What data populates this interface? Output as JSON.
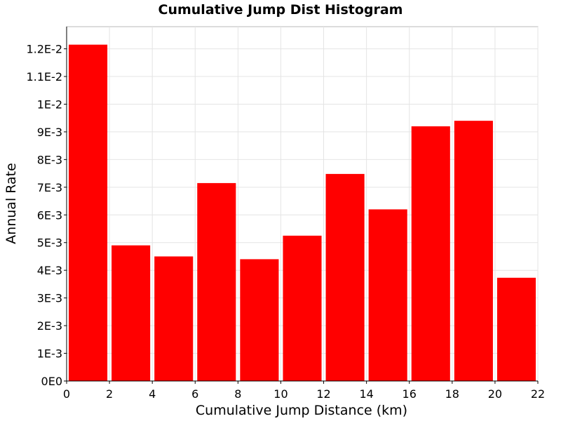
{
  "chart_data": {
    "type": "bar",
    "title": "Cumulative Jump Dist Histogram",
    "xlabel": "Cumulative Jump Distance (km)",
    "ylabel": "Annual Rate",
    "xlim": [
      0,
      22
    ],
    "ylim": [
      0,
      0.0128
    ],
    "x_ticks": [
      0,
      2,
      4,
      6,
      8,
      10,
      12,
      14,
      16,
      18,
      20,
      22
    ],
    "x_tick_labels": [
      "0",
      "2",
      "4",
      "6",
      "8",
      "10",
      "12",
      "14",
      "16",
      "18",
      "20",
      "22"
    ],
    "y_ticks": [
      0,
      0.001,
      0.002,
      0.003,
      0.004,
      0.005,
      0.006,
      0.007,
      0.008,
      0.009,
      0.01,
      0.011,
      0.012
    ],
    "y_tick_labels": [
      "0E0",
      "1E-3",
      "2E-3",
      "3E-3",
      "4E-3",
      "5E-3",
      "6E-3",
      "7E-3",
      "8E-3",
      "9E-3",
      "1E-2",
      "1.1E-2",
      "1.2E-2"
    ],
    "grid": true,
    "bar_color": "#ff0000",
    "bins": [
      {
        "x_start": 0,
        "x_end": 2,
        "value": 0.01215
      },
      {
        "x_start": 2,
        "x_end": 4,
        "value": 0.0049
      },
      {
        "x_start": 4,
        "x_end": 6,
        "value": 0.0045
      },
      {
        "x_start": 6,
        "x_end": 8,
        "value": 0.00715
      },
      {
        "x_start": 8,
        "x_end": 10,
        "value": 0.0044
      },
      {
        "x_start": 10,
        "x_end": 12,
        "value": 0.00525
      },
      {
        "x_start": 12,
        "x_end": 14,
        "value": 0.00748
      },
      {
        "x_start": 14,
        "x_end": 16,
        "value": 0.0062
      },
      {
        "x_start": 16,
        "x_end": 18,
        "value": 0.0092
      },
      {
        "x_start": 18,
        "x_end": 20,
        "value": 0.0094
      },
      {
        "x_start": 20,
        "x_end": 22,
        "value": 0.00373
      }
    ]
  }
}
